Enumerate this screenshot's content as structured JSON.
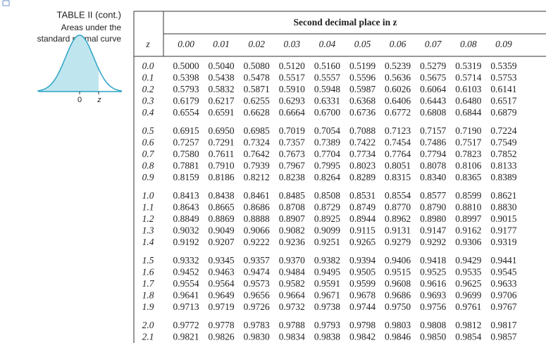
{
  "header": {
    "title": "TABLE II (cont.)",
    "subtitle_lines": [
      "Areas under the",
      "standard normal curve"
    ],
    "curve_labels": [
      "0",
      "z"
    ]
  },
  "table": {
    "group_title": "Second decimal place in z",
    "columns": [
      "z",
      "0.00",
      "0.01",
      "0.02",
      "0.03",
      "0.04",
      "0.05",
      "0.06",
      "0.07",
      "0.08",
      "0.09"
    ],
    "rows": [
      [
        "0.0",
        "0.5000",
        "0.5040",
        "0.5080",
        "0.5120",
        "0.5160",
        "0.5199",
        "0.5239",
        "0.5279",
        "0.5319",
        "0.5359"
      ],
      [
        "0.1",
        "0.5398",
        "0.5438",
        "0.5478",
        "0.5517",
        "0.5557",
        "0.5596",
        "0.5636",
        "0.5675",
        "0.5714",
        "0.5753"
      ],
      [
        "0.2",
        "0.5793",
        "0.5832",
        "0.5871",
        "0.5910",
        "0.5948",
        "0.5987",
        "0.6026",
        "0.6064",
        "0.6103",
        "0.6141"
      ],
      [
        "0.3",
        "0.6179",
        "0.6217",
        "0.6255",
        "0.6293",
        "0.6331",
        "0.6368",
        "0.6406",
        "0.6443",
        "0.6480",
        "0.6517"
      ],
      [
        "0.4",
        "0.6554",
        "0.6591",
        "0.6628",
        "0.6664",
        "0.6700",
        "0.6736",
        "0.6772",
        "0.6808",
        "0.6844",
        "0.6879"
      ],
      [
        "0.5",
        "0.6915",
        "0.6950",
        "0.6985",
        "0.7019",
        "0.7054",
        "0.7088",
        "0.7123",
        "0.7157",
        "0.7190",
        "0.7224"
      ],
      [
        "0.6",
        "0.7257",
        "0.7291",
        "0.7324",
        "0.7357",
        "0.7389",
        "0.7422",
        "0.7454",
        "0.7486",
        "0.7517",
        "0.7549"
      ],
      [
        "0.7",
        "0.7580",
        "0.7611",
        "0.7642",
        "0.7673",
        "0.7704",
        "0.7734",
        "0.7764",
        "0.7794",
        "0.7823",
        "0.7852"
      ],
      [
        "0.8",
        "0.7881",
        "0.7910",
        "0.7939",
        "0.7967",
        "0.7995",
        "0.8023",
        "0.8051",
        "0.8078",
        "0.8106",
        "0.8133"
      ],
      [
        "0.9",
        "0.8159",
        "0.8186",
        "0.8212",
        "0.8238",
        "0.8264",
        "0.8289",
        "0.8315",
        "0.8340",
        "0.8365",
        "0.8389"
      ],
      [
        "1.0",
        "0.8413",
        "0.8438",
        "0.8461",
        "0.8485",
        "0.8508",
        "0.8531",
        "0.8554",
        "0.8577",
        "0.8599",
        "0.8621"
      ],
      [
        "1.1",
        "0.8643",
        "0.8665",
        "0.8686",
        "0.8708",
        "0.8729",
        "0.8749",
        "0.8770",
        "0.8790",
        "0.8810",
        "0.8830"
      ],
      [
        "1.2",
        "0.8849",
        "0.8869",
        "0.8888",
        "0.8907",
        "0.8925",
        "0.8944",
        "0.8962",
        "0.8980",
        "0.8997",
        "0.9015"
      ],
      [
        "1.3",
        "0.9032",
        "0.9049",
        "0.9066",
        "0.9082",
        "0.9099",
        "0.9115",
        "0.9131",
        "0.9147",
        "0.9162",
        "0.9177"
      ],
      [
        "1.4",
        "0.9192",
        "0.9207",
        "0.9222",
        "0.9236",
        "0.9251",
        "0.9265",
        "0.9279",
        "0.9292",
        "0.9306",
        "0.9319"
      ],
      [
        "1.5",
        "0.9332",
        "0.9345",
        "0.9357",
        "0.9370",
        "0.9382",
        "0.9394",
        "0.9406",
        "0.9418",
        "0.9429",
        "0.9441"
      ],
      [
        "1.6",
        "0.9452",
        "0.9463",
        "0.9474",
        "0.9484",
        "0.9495",
        "0.9505",
        "0.9515",
        "0.9525",
        "0.9535",
        "0.9545"
      ],
      [
        "1.7",
        "0.9554",
        "0.9564",
        "0.9573",
        "0.9582",
        "0.9591",
        "0.9599",
        "0.9608",
        "0.9616",
        "0.9625",
        "0.9633"
      ],
      [
        "1.8",
        "0.9641",
        "0.9649",
        "0.9656",
        "0.9664",
        "0.9671",
        "0.9678",
        "0.9686",
        "0.9693",
        "0.9699",
        "0.9706"
      ],
      [
        "1.9",
        "0.9713",
        "0.9719",
        "0.9726",
        "0.9732",
        "0.9738",
        "0.9744",
        "0.9750",
        "0.9756",
        "0.9761",
        "0.9767"
      ],
      [
        "2.0",
        "0.9772",
        "0.9778",
        "0.9783",
        "0.9788",
        "0.9793",
        "0.9798",
        "0.9803",
        "0.9808",
        "0.9812",
        "0.9817"
      ],
      [
        "2.1",
        "0.9821",
        "0.9826",
        "0.9830",
        "0.9834",
        "0.9838",
        "0.9842",
        "0.9846",
        "0.9850",
        "0.9854",
        "0.9857"
      ]
    ]
  }
}
